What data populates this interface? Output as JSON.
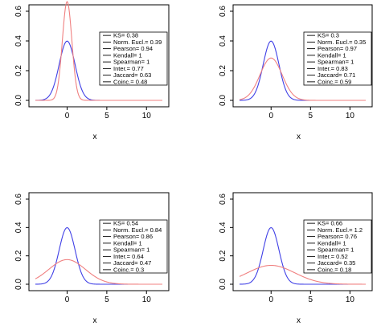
{
  "colors": {
    "blue": "#4040e6",
    "red": "#f08080",
    "axis": "#000000"
  },
  "chart_data": [
    {
      "type": "line",
      "xlabel": "x",
      "ylabel": "",
      "xlim": [
        -4,
        12
      ],
      "ylim": [
        0,
        0.65
      ],
      "xticks": [
        0,
        5,
        10
      ],
      "yticks": [
        0.0,
        0.2,
        0.4,
        0.6
      ],
      "grid": false,
      "legend_position": "right",
      "series": [
        {
          "color": "#4040e6",
          "distribution": {
            "family": "normal",
            "mean": 0,
            "sd": 1
          }
        },
        {
          "color": "#f08080",
          "distribution": {
            "family": "normal",
            "mean": 0,
            "sd": 0.6
          }
        }
      ],
      "legend": [
        {
          "label": "KS=",
          "value": "0.38"
        },
        {
          "label": "Norm. Eucl.=",
          "value": "0.39"
        },
        {
          "label": "Pearson=",
          "value": "0.94"
        },
        {
          "label": "Kendall=",
          "value": "1"
        },
        {
          "label": "Spearman=",
          "value": "1"
        },
        {
          "label": "Inter.=",
          "value": "0.77"
        },
        {
          "label": "Jaccard=",
          "value": "0.63"
        },
        {
          "label": "Coinc.=",
          "value": "0.48"
        }
      ]
    },
    {
      "type": "line",
      "xlabel": "x",
      "ylabel": "",
      "xlim": [
        -4,
        12
      ],
      "ylim": [
        0,
        0.65
      ],
      "xticks": [
        0,
        5,
        10
      ],
      "yticks": [
        0.0,
        0.2,
        0.4,
        0.6
      ],
      "grid": false,
      "legend_position": "right",
      "series": [
        {
          "color": "#4040e6",
          "distribution": {
            "family": "normal",
            "mean": 0,
            "sd": 1
          }
        },
        {
          "color": "#f08080",
          "distribution": {
            "family": "normal",
            "mean": 0,
            "sd": 1.4
          }
        }
      ],
      "legend": [
        {
          "label": "KS=",
          "value": "0.3"
        },
        {
          "label": "Norm. Eucl.=",
          "value": "0.35"
        },
        {
          "label": "Pearson=",
          "value": "0.97"
        },
        {
          "label": "Kendall=",
          "value": "1"
        },
        {
          "label": "Spearman=",
          "value": "1"
        },
        {
          "label": "Inter.=",
          "value": "0.83"
        },
        {
          "label": "Jaccard=",
          "value": "0.71"
        },
        {
          "label": "Coinc.=",
          "value": "0.59"
        }
      ]
    },
    {
      "type": "line",
      "xlabel": "x",
      "ylabel": "",
      "xlim": [
        -4,
        12
      ],
      "ylim": [
        0,
        0.65
      ],
      "xticks": [
        0,
        5,
        10
      ],
      "yticks": [
        0.0,
        0.2,
        0.4,
        0.6
      ],
      "grid": false,
      "legend_position": "right",
      "series": [
        {
          "color": "#4040e6",
          "distribution": {
            "family": "normal",
            "mean": 0,
            "sd": 1
          }
        },
        {
          "color": "#f08080",
          "distribution": {
            "family": "normal",
            "mean": 0,
            "sd": 2.3
          }
        }
      ],
      "legend": [
        {
          "label": "KS=",
          "value": "0.54"
        },
        {
          "label": "Norm. Eucl.=",
          "value": "0.84"
        },
        {
          "label": "Pearson=",
          "value": "0.86"
        },
        {
          "label": "Kendall=",
          "value": "1"
        },
        {
          "label": "Spearman=",
          "value": "1"
        },
        {
          "label": "Inter.=",
          "value": "0.64"
        },
        {
          "label": "Jaccard=",
          "value": "0.47"
        },
        {
          "label": "Coinc.=",
          "value": "0.3"
        }
      ]
    },
    {
      "type": "line",
      "xlabel": "x",
      "ylabel": "",
      "xlim": [
        -4,
        12
      ],
      "ylim": [
        0,
        0.65
      ],
      "xticks": [
        0,
        5,
        10
      ],
      "yticks": [
        0.0,
        0.2,
        0.4,
        0.6
      ],
      "grid": false,
      "legend_position": "right",
      "series": [
        {
          "color": "#4040e6",
          "distribution": {
            "family": "normal",
            "mean": 0,
            "sd": 1
          }
        },
        {
          "color": "#f08080",
          "distribution": {
            "family": "normal",
            "mean": 0,
            "sd": 3
          }
        }
      ],
      "legend": [
        {
          "label": "KS=",
          "value": "0.66"
        },
        {
          "label": "Norm. Eucl.=",
          "value": "1.2"
        },
        {
          "label": "Pearson=",
          "value": "0.76"
        },
        {
          "label": "Kendall=",
          "value": "1"
        },
        {
          "label": "Spearman=",
          "value": "1"
        },
        {
          "label": "Inter.=",
          "value": "0.52"
        },
        {
          "label": "Jaccard=",
          "value": "0.35"
        },
        {
          "label": "Coinc.=",
          "value": "0.18"
        }
      ]
    }
  ]
}
